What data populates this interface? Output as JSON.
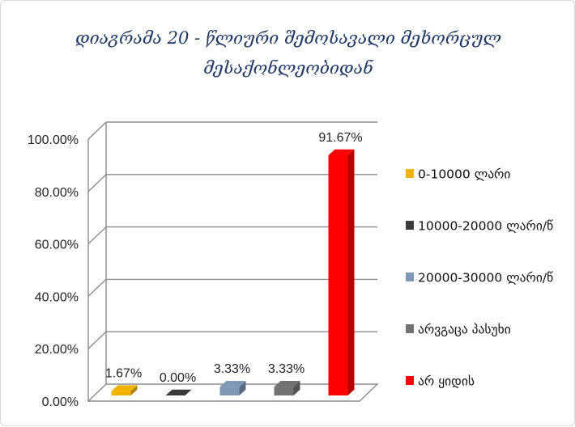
{
  "chart_data": {
    "type": "bar",
    "title_lines": [
      "დიაგრამა 20 - წლიური შემოსავალი მეხორცულ",
      "მესაქონლეობიდან"
    ],
    "categories": [
      "0-10000 ლარი",
      "10000-20000 ლარი/წ",
      "20000-30000 ლარი/წ",
      "არვგაცა პასუხი",
      "არ ყიდის"
    ],
    "values": [
      1.67,
      0.0,
      3.33,
      3.33,
      91.67
    ],
    "value_labels": [
      "1.67%",
      "0.00%",
      "3.33%",
      "3.33%",
      "91.67%"
    ],
    "colors": [
      "#f2b200",
      "#3a3a3a",
      "#7f96b5",
      "#727272",
      "#ff0000"
    ],
    "y_ticks": [
      "0.00%",
      "20.00%",
      "40.00%",
      "60.00%",
      "80.00%",
      "100.00%"
    ],
    "ylim": [
      0,
      100
    ],
    "grid": true,
    "style": "3d-column",
    "legend_position": "right"
  }
}
